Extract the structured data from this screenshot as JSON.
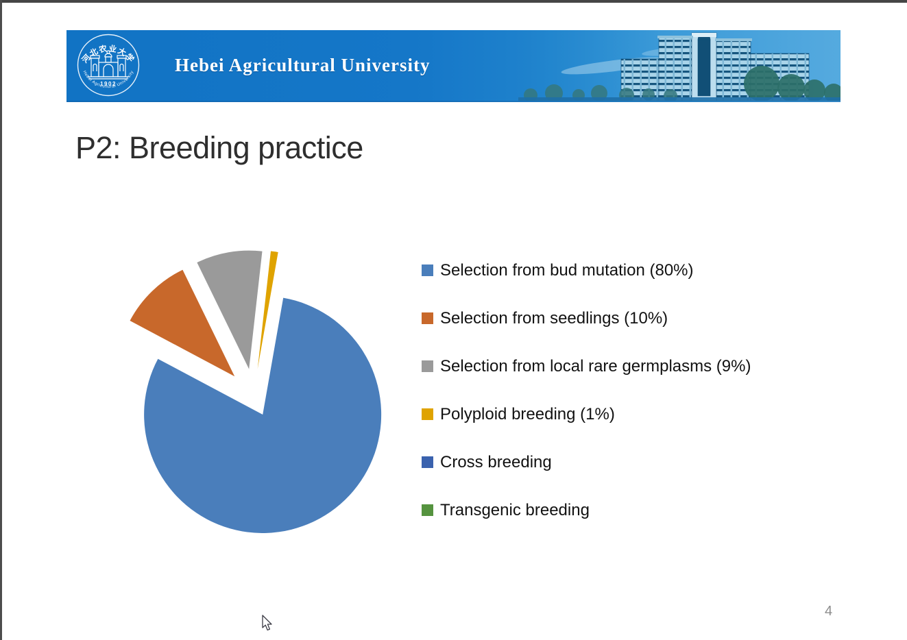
{
  "banner": {
    "university_name": "Hebei Agricultural University",
    "bg_left_color": "#1173C4",
    "bg_right_color": "#3D99D7",
    "logo": {
      "chinese_name": "河北农业大学",
      "latin_name": "Hebei Agricultural University",
      "year": "1902"
    }
  },
  "slide": {
    "title": "P2: Breeding practice",
    "page_number": "4"
  },
  "chart_data": {
    "type": "pie",
    "title": "",
    "categories": [
      "Selection from bud mutation",
      "Selection from seedlings",
      "Selection from local rare germplasms",
      "Polyploid breeding",
      "Cross breeding",
      "Transgenic breeding"
    ],
    "values": [
      80,
      10,
      9,
      1,
      0,
      0
    ],
    "colors": [
      "#4A7EBB",
      "#C8682B",
      "#9A9A9A",
      "#DFA300",
      "#3A62AE",
      "#55933F"
    ],
    "legend_labels": [
      "Selection from bud mutation (80%)",
      "Selection from seedlings (10%)",
      "Selection from local rare germplasms (9%)",
      "Polyploid breeding (1%)",
      "Cross breeding",
      "Transgenic breeding"
    ],
    "legend_position": "right",
    "exploded": true,
    "rotation_deg": 10
  }
}
